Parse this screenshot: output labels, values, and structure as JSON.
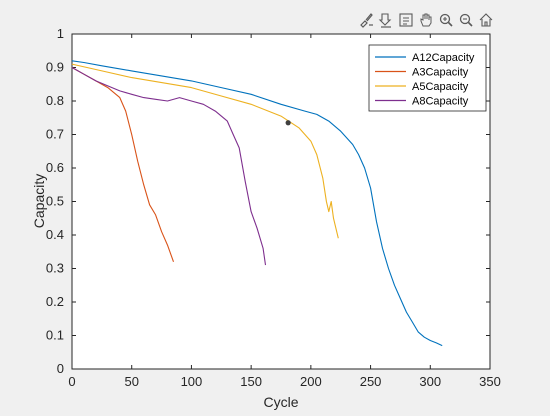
{
  "toolbar": {
    "icons": [
      "brush-icon",
      "export-icon",
      "datatip-icon",
      "pan-icon",
      "zoom-in-icon",
      "zoom-out-icon",
      "home-icon"
    ]
  },
  "chart_data": {
    "type": "line",
    "title": "",
    "xlabel": "Cycle",
    "ylabel": "Capacity",
    "xlim": [
      0,
      350
    ],
    "ylim": [
      0,
      1
    ],
    "xticks": [
      0,
      50,
      100,
      150,
      200,
      250,
      300,
      350
    ],
    "yticks": [
      0,
      0.1,
      0.2,
      0.3,
      0.4,
      0.5,
      0.6,
      0.7,
      0.8,
      0.9,
      1
    ],
    "grid": false,
    "legend_position": "top-right",
    "series": [
      {
        "name": "A12Capacity",
        "color": "#0072BD",
        "x": [
          0,
          10,
          25,
          50,
          75,
          100,
          125,
          150,
          175,
          195,
          205,
          215,
          225,
          235,
          240,
          245,
          250,
          255,
          260,
          265,
          270,
          275,
          280,
          285,
          290,
          295,
          300,
          305,
          310
        ],
        "y": [
          0.92,
          0.915,
          0.905,
          0.89,
          0.875,
          0.86,
          0.84,
          0.82,
          0.79,
          0.77,
          0.76,
          0.74,
          0.71,
          0.67,
          0.64,
          0.6,
          0.54,
          0.44,
          0.36,
          0.3,
          0.25,
          0.21,
          0.17,
          0.14,
          0.11,
          0.095,
          0.085,
          0.078,
          0.07
        ]
      },
      {
        "name": "A3Capacity",
        "color": "#D95319",
        "x": [
          0,
          10,
          20,
          30,
          40,
          45,
          50,
          55,
          60,
          65,
          70,
          75,
          80,
          85
        ],
        "y": [
          0.9,
          0.88,
          0.86,
          0.84,
          0.81,
          0.77,
          0.7,
          0.62,
          0.55,
          0.49,
          0.46,
          0.41,
          0.37,
          0.32
        ]
      },
      {
        "name": "A5Capacity",
        "color": "#EDB120",
        "x": [
          0,
          25,
          50,
          75,
          100,
          125,
          150,
          175,
          190,
          200,
          205,
          210,
          213,
          215,
          217,
          219,
          221,
          223
        ],
        "y": [
          0.91,
          0.89,
          0.87,
          0.855,
          0.84,
          0.815,
          0.79,
          0.755,
          0.72,
          0.68,
          0.64,
          0.57,
          0.5,
          0.47,
          0.5,
          0.45,
          0.42,
          0.39
        ]
      },
      {
        "name": "A8Capacity",
        "color": "#7E2F8E",
        "x": [
          0,
          10,
          20,
          30,
          40,
          50,
          60,
          70,
          80,
          90,
          100,
          110,
          120,
          130,
          135,
          140,
          145,
          150,
          155,
          160,
          162
        ],
        "y": [
          0.9,
          0.88,
          0.86,
          0.845,
          0.83,
          0.82,
          0.81,
          0.805,
          0.8,
          0.81,
          0.8,
          0.79,
          0.77,
          0.74,
          0.7,
          0.66,
          0.56,
          0.47,
          0.42,
          0.36,
          0.31
        ]
      }
    ],
    "annotations": [
      {
        "type": "datatip-marker",
        "x": 181,
        "y": 0.735
      }
    ]
  }
}
